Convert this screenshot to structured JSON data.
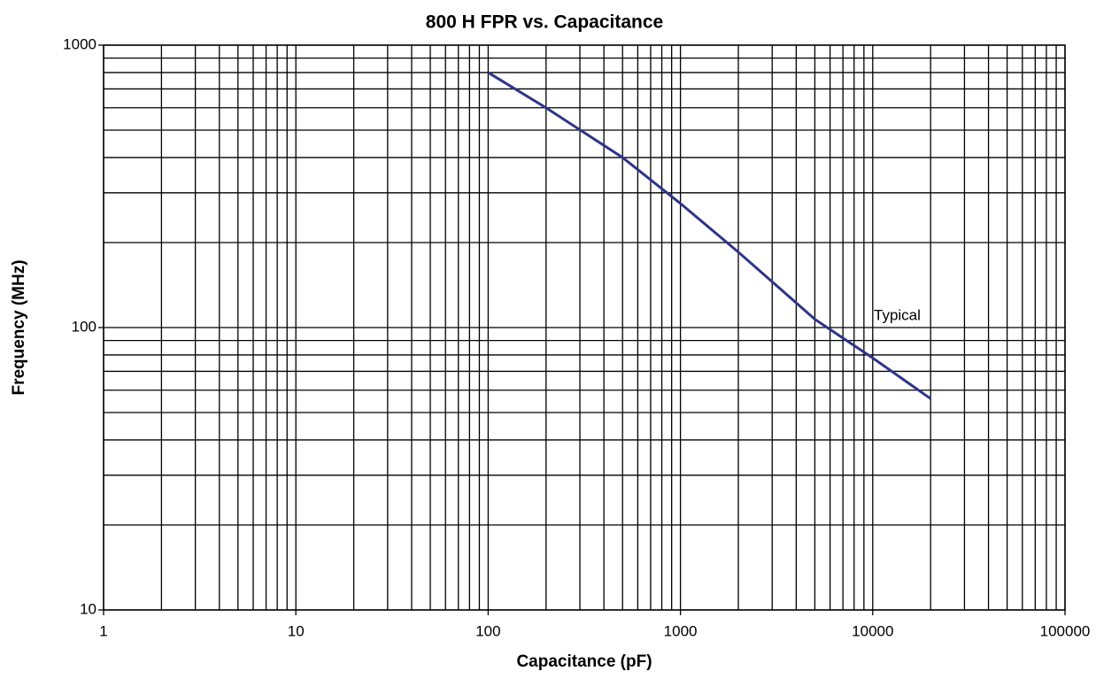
{
  "chart_data": {
    "type": "line",
    "title": "800 H FPR vs. Capacitance",
    "x_label": "Capacitance (pF)",
    "y_label": "Frequency (MHz)",
    "annotation": "Typical",
    "x_log": true,
    "y_log": true,
    "grid": true,
    "minor_grid": true,
    "xlim": [
      1,
      100000
    ],
    "xticks": [
      1,
      10,
      100,
      1000,
      10000,
      100000
    ],
    "ylim": [
      10,
      1000
    ],
    "yticks": [
      10,
      100,
      1000
    ],
    "series": [
      {
        "name": "Typical",
        "color": "#2e3585",
        "x": [
          100,
          200,
          500,
          1000,
          2000,
          5000,
          10000,
          20000
        ],
        "values": [
          800,
          600,
          400,
          275,
          185,
          107,
          78,
          56
        ]
      }
    ]
  }
}
